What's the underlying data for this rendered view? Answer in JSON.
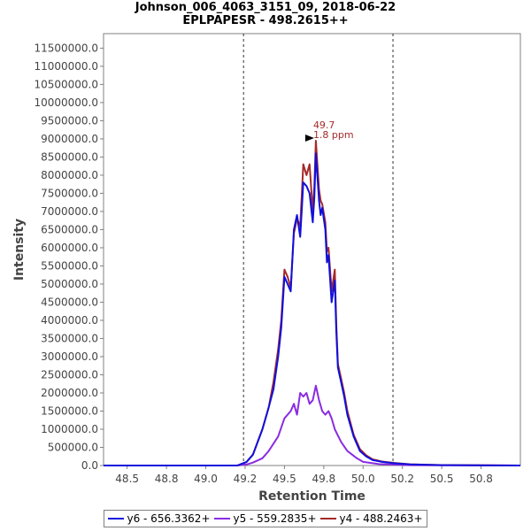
{
  "chart_data": {
    "type": "line",
    "title": "Johnson_006_4063_3151_09, 2018-06-22",
    "subtitle": "EPLPAPESR - 498.2615++",
    "xlabel": "Retention Time",
    "ylabel": "Intensity",
    "xlim": [
      48.35,
      51.0
    ],
    "ylim": [
      0,
      11900000
    ],
    "xticks": [
      "48.5",
      "48.8",
      "49.0",
      "49.2",
      "49.5",
      "49.8",
      "50.0",
      "50.2",
      "50.5",
      "50.8"
    ],
    "xtick_values": [
      48.5,
      48.75,
      49.0,
      49.25,
      49.5,
      49.75,
      50.0,
      50.25,
      50.5,
      50.75
    ],
    "yticks": [
      "0.0",
      "500000.0",
      "1000000.0",
      "1500000.0",
      "2000000.0",
      "2500000.0",
      "3000000.0",
      "3500000.0",
      "4000000.0",
      "4500000.0",
      "5000000.0",
      "5500000.0",
      "6000000.0",
      "6500000.0",
      "7000000.0",
      "7500000.0",
      "8000000.0",
      "8500000.0",
      "9000000.0",
      "9500000.0",
      "10000000.0",
      "10500000.0",
      "11000000.0",
      "11500000.0"
    ],
    "ytick_values": [
      0,
      500000,
      1000000,
      1500000,
      2000000,
      2500000,
      3000000,
      3500000,
      4000000,
      4500000,
      5000000,
      5500000,
      6000000,
      6500000,
      7000000,
      7500000,
      8000000,
      8500000,
      9000000,
      9500000,
      10000000,
      10500000,
      11000000,
      11500000
    ],
    "vlines": [
      49.24,
      50.19
    ],
    "annotation": {
      "x": 49.7,
      "y": 8950000,
      "line1": "49.7",
      "line2": "1.8 ppm"
    },
    "legend_position": "bottom",
    "series": [
      {
        "name": "y6 - 656.3362+",
        "color": "#1010dd",
        "x": [
          48.35,
          49.2,
          49.26,
          49.3,
          49.36,
          49.4,
          49.43,
          49.46,
          49.48,
          49.5,
          49.52,
          49.54,
          49.56,
          49.58,
          49.6,
          49.61,
          49.62,
          49.64,
          49.66,
          49.68,
          49.69,
          49.7,
          49.72,
          49.73,
          49.74,
          49.76,
          49.77,
          49.78,
          49.8,
          49.82,
          49.83,
          49.84,
          49.86,
          49.88,
          49.9,
          49.94,
          49.98,
          50.02,
          50.06,
          50.12,
          50.2,
          50.3,
          50.5,
          51.0
        ],
        "values": [
          0,
          0,
          100000,
          300000,
          1000000,
          1600000,
          2100000,
          3000000,
          3800000,
          5200000,
          5000000,
          4800000,
          6500000,
          6900000,
          6300000,
          7000000,
          7800000,
          7700000,
          7500000,
          6700000,
          7400000,
          8600000,
          7300000,
          6900000,
          7100000,
          6500000,
          5600000,
          5800000,
          4500000,
          5100000,
          3700000,
          2700000,
          2300000,
          1900000,
          1400000,
          800000,
          400000,
          250000,
          150000,
          100000,
          60000,
          30000,
          10000,
          0
        ]
      },
      {
        "name": "y5 - 559.2835+",
        "color": "#8a2be2",
        "x": [
          48.35,
          49.2,
          49.26,
          49.3,
          49.36,
          49.4,
          49.46,
          49.5,
          49.54,
          49.56,
          49.58,
          49.6,
          49.62,
          49.64,
          49.66,
          49.68,
          49.7,
          49.72,
          49.74,
          49.76,
          49.78,
          49.8,
          49.82,
          49.86,
          49.9,
          49.96,
          50.0,
          50.1,
          50.3,
          51.0
        ],
        "values": [
          0,
          0,
          30000,
          80000,
          200000,
          400000,
          800000,
          1300000,
          1500000,
          1700000,
          1400000,
          2000000,
          1900000,
          2000000,
          1700000,
          1800000,
          2200000,
          1800000,
          1500000,
          1400000,
          1500000,
          1300000,
          1000000,
          650000,
          400000,
          200000,
          100000,
          40000,
          10000,
          0
        ]
      },
      {
        "name": "y4 - 488.2463+",
        "color": "#a52a2a",
        "x": [
          48.35,
          49.2,
          49.26,
          49.3,
          49.36,
          49.4,
          49.43,
          49.46,
          49.48,
          49.5,
          49.52,
          49.54,
          49.56,
          49.58,
          49.6,
          49.61,
          49.62,
          49.64,
          49.66,
          49.68,
          49.69,
          49.7,
          49.72,
          49.73,
          49.74,
          49.76,
          49.77,
          49.78,
          49.8,
          49.82,
          49.83,
          49.84,
          49.86,
          49.88,
          49.9,
          49.94,
          49.98,
          50.02,
          50.06,
          50.12,
          50.2,
          50.3,
          50.5,
          51.0
        ],
        "values": [
          0,
          0,
          100000,
          300000,
          1000000,
          1600000,
          2300000,
          3200000,
          4000000,
          5400000,
          5200000,
          4900000,
          6400000,
          6800000,
          6600000,
          7400000,
          8300000,
          8000000,
          8300000,
          7000000,
          7700000,
          8950000,
          7600000,
          7300000,
          7200000,
          6700000,
          5900000,
          6000000,
          4800000,
          5400000,
          3900000,
          2800000,
          2400000,
          2000000,
          1500000,
          850000,
          450000,
          280000,
          170000,
          110000,
          70000,
          35000,
          12000,
          0
        ]
      }
    ]
  }
}
